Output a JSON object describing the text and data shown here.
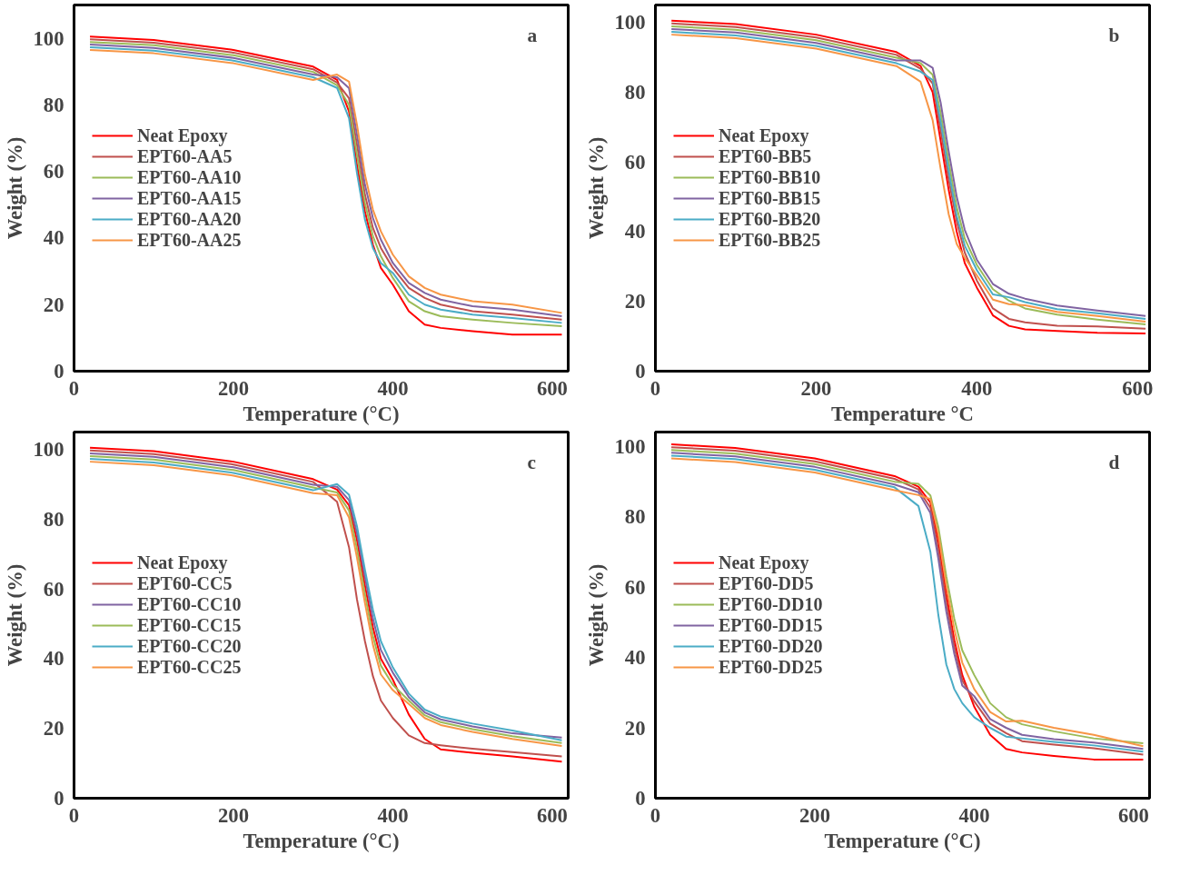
{
  "chart_data": [
    {
      "type": "line",
      "xlabel": "Temperature (°C)",
      "ylabel": "Weight (%)",
      "annotations": [
        "a"
      ],
      "legend": "left",
      "grid": false,
      "xlim": [
        0,
        620
      ],
      "ylim": [
        0,
        110
      ],
      "xticks": [
        0,
        200,
        400,
        600
      ],
      "yticks": [
        0,
        20,
        40,
        60,
        80,
        100
      ],
      "x": [
        20,
        100,
        200,
        300,
        330,
        345,
        355,
        365,
        375,
        385,
        400,
        420,
        440,
        460,
        500,
        550,
        612
      ],
      "series": [
        {
          "name": "Neat Epoxy",
          "color": "#ff0000",
          "values": [
            100.5,
            99.5,
            96.5,
            91.5,
            87.5,
            78,
            62,
            48,
            38,
            31,
            26,
            18,
            14,
            13,
            12,
            11,
            11
          ]
        },
        {
          "name": "EPT60-AA5",
          "color": "#c0504d",
          "values": [
            99.7,
            98.7,
            95.7,
            90.7,
            86.7,
            82,
            68,
            53,
            43,
            37,
            31,
            25,
            22,
            20,
            18,
            17,
            15.5
          ]
        },
        {
          "name": "EPT60-AA10",
          "color": "#9bbb59",
          "values": [
            98.9,
            97.9,
            94.9,
            89.9,
            85.9,
            80,
            65,
            50.5,
            40.5,
            34.5,
            28,
            21,
            18,
            16.5,
            15.5,
            14.5,
            13.5
          ]
        },
        {
          "name": "EPT60-AA15",
          "color": "#8064a2",
          "values": [
            98.1,
            97.1,
            94.1,
            89.1,
            88.3,
            85,
            71,
            56,
            46,
            39.5,
            32.5,
            26.5,
            23.5,
            21.5,
            19.5,
            18.5,
            16.5
          ]
        },
        {
          "name": "EPT60-AA20",
          "color": "#4bacc6",
          "values": [
            97.3,
            96.3,
            93.3,
            88.3,
            85.1,
            76,
            59.5,
            45.5,
            37,
            32.5,
            29.5,
            23,
            20,
            18.5,
            17,
            16,
            14.5
          ]
        },
        {
          "name": "EPT60-AA25",
          "color": "#f79646",
          "values": [
            96.5,
            95.5,
            92.5,
            87.5,
            89.1,
            87,
            74,
            59,
            48.5,
            42,
            35,
            28.5,
            25,
            23,
            21,
            20,
            17.5
          ]
        }
      ]
    },
    {
      "type": "line",
      "xlabel": "Temperature °C",
      "ylabel": "Weight (%)",
      "annotations": [
        "b"
      ],
      "legend": "left",
      "grid": false,
      "xlim": [
        0,
        615
      ],
      "ylim": [
        0,
        105
      ],
      "xticks": [
        0,
        200,
        400,
        600
      ],
      "yticks": [
        0,
        20,
        40,
        60,
        80,
        100
      ],
      "x": [
        20,
        100,
        200,
        300,
        330,
        345,
        355,
        365,
        375,
        385,
        400,
        420,
        440,
        460,
        500,
        550,
        610
      ],
      "series": [
        {
          "name": "Neat Epoxy",
          "color": "#ff0000",
          "values": [
            100.5,
            99.5,
            96.5,
            91.5,
            87.5,
            80,
            66,
            52,
            40,
            31,
            24,
            16,
            13,
            12,
            11.5,
            11,
            10.8
          ]
        },
        {
          "name": "EPT60-BB5",
          "color": "#c0504d",
          "values": [
            99.7,
            98.7,
            95.7,
            90.7,
            86.7,
            82.5,
            69,
            55,
            43,
            34,
            26,
            18,
            15,
            14,
            13,
            12.8,
            12.2
          ]
        },
        {
          "name": "EPT60-BB10",
          "color": "#9bbb59",
          "values": [
            98.9,
            97.9,
            94.9,
            89.9,
            88.3,
            85,
            74,
            60,
            47,
            38,
            30.5,
            23.5,
            20.2,
            18,
            16.2,
            14.8,
            13.4
          ]
        },
        {
          "name": "EPT60-BB15",
          "color": "#8064a2",
          "values": [
            98.1,
            97.1,
            94.1,
            89.1,
            89.1,
            87,
            77,
            63,
            50,
            40.5,
            32,
            25,
            22.2,
            20.8,
            18.8,
            17.4,
            15.8
          ]
        },
        {
          "name": "EPT60-BB20",
          "color": "#4bacc6",
          "values": [
            97.3,
            96.3,
            93.3,
            88.3,
            85.9,
            83.5,
            71.5,
            57.5,
            44.5,
            36,
            29,
            22,
            21.2,
            19.8,
            17.8,
            16.6,
            15
          ]
        },
        {
          "name": "EPT60-BB25",
          "color": "#f79646",
          "values": [
            96.5,
            95.5,
            92.5,
            87.5,
            83,
            72,
            58,
            45,
            36.5,
            32.5,
            27.5,
            20.5,
            19.2,
            18.9,
            17,
            15.8,
            14.2
          ]
        }
      ]
    },
    {
      "type": "line",
      "xlabel": "Temperature (°C)",
      "ylabel": "Weight (%)",
      "annotations": [
        "c"
      ],
      "legend": "left",
      "grid": false,
      "xlim": [
        0,
        620
      ],
      "ylim": [
        0,
        105
      ],
      "xticks": [
        0,
        200,
        400,
        600
      ],
      "yticks": [
        0,
        20,
        40,
        60,
        80,
        100
      ],
      "x": [
        20,
        100,
        200,
        300,
        330,
        345,
        355,
        365,
        375,
        385,
        400,
        420,
        440,
        460,
        500,
        550,
        612
      ],
      "series": [
        {
          "name": "Neat Epoxy",
          "color": "#ff0000",
          "values": [
            100.5,
            99.5,
            96.5,
            91.5,
            88.5,
            84,
            74,
            61,
            49,
            40,
            34,
            24,
            17,
            14,
            13,
            12,
            10.5
          ]
        },
        {
          "name": "EPT60-CC5",
          "color": "#c0504d",
          "values": [
            99.7,
            98.7,
            95.7,
            90.7,
            85,
            72,
            57,
            45,
            35,
            28,
            23,
            18,
            15.8,
            15.2,
            14.2,
            13.2,
            12
          ]
        },
        {
          "name": "EPT60-CC10",
          "color": "#8064a2",
          "values": [
            98.9,
            97.9,
            94.9,
            89.9,
            89.3,
            85.5,
            76,
            63.5,
            51.5,
            42.5,
            36,
            29,
            24.6,
            22.6,
            20.6,
            18.6,
            17.4
          ]
        },
        {
          "name": "EPT60-CC15",
          "color": "#9bbb59",
          "values": [
            98.1,
            97.1,
            94.1,
            89.1,
            87.7,
            82.5,
            71.5,
            58.5,
            46.5,
            38,
            32.5,
            28,
            23.8,
            21.8,
            19.8,
            17.8,
            15.8
          ]
        },
        {
          "name": "EPT60-CC20",
          "color": "#4bacc6",
          "values": [
            97.3,
            96.3,
            93.3,
            88.3,
            90.1,
            87,
            78,
            65.5,
            54,
            45,
            37.5,
            30,
            25.4,
            23.4,
            21.4,
            19.4,
            16.6
          ]
        },
        {
          "name": "EPT60-CC25",
          "color": "#f79646",
          "values": [
            96.5,
            95.5,
            92.5,
            87.5,
            86.9,
            80.5,
            69,
            56,
            44,
            35.5,
            31,
            27,
            23,
            21,
            19,
            17,
            15
          ]
        }
      ]
    },
    {
      "type": "line",
      "xlabel": "Temperature (°C)",
      "ylabel": "Weight (%)",
      "annotations": [
        "d"
      ],
      "legend": "left",
      "grid": false,
      "xlim": [
        0,
        620
      ],
      "ylim": [
        0,
        104
      ],
      "xticks": [
        0,
        200,
        400,
        600
      ],
      "yticks": [
        0,
        20,
        40,
        60,
        80,
        100
      ],
      "x": [
        20,
        100,
        200,
        300,
        330,
        345,
        355,
        365,
        375,
        385,
        400,
        420,
        440,
        460,
        500,
        550,
        612
      ],
      "series": [
        {
          "name": "Neat Epoxy",
          "color": "#ff0000",
          "values": [
            100.5,
            99.5,
            96.5,
            91.5,
            88.5,
            84,
            73,
            58,
            45,
            35,
            26,
            18,
            14,
            13,
            12,
            11,
            11
          ]
        },
        {
          "name": "EPT60-DD5",
          "color": "#c0504d",
          "values": [
            99.7,
            98.7,
            95.7,
            90.7,
            87.7,
            82.5,
            70.5,
            55.5,
            43,
            33.5,
            27.5,
            21.2,
            18.5,
            16.2,
            15.2,
            14.2,
            12.4
          ]
        },
        {
          "name": "EPT60-DD10",
          "color": "#9bbb59",
          "values": [
            98.9,
            97.9,
            94.9,
            89.9,
            89.3,
            86,
            77,
            63,
            51,
            42,
            35,
            27,
            23,
            21,
            19,
            17,
            15.6
          ]
        },
        {
          "name": "EPT60-DD15",
          "color": "#8064a2",
          "values": [
            98.1,
            97.1,
            94.1,
            89.1,
            86.9,
            81,
            68,
            53,
            41,
            32,
            29,
            22.5,
            20,
            18,
            16.8,
            15.8,
            14
          ]
        },
        {
          "name": "EPT60-DD20",
          "color": "#4bacc6",
          "values": [
            97.3,
            96.3,
            93.3,
            88.3,
            83,
            70,
            52,
            38,
            31,
            27,
            23,
            20,
            17.5,
            17,
            16,
            15,
            13.2
          ]
        },
        {
          "name": "EPT60-DD25",
          "color": "#f79646",
          "values": [
            96.5,
            95.5,
            92.5,
            87.5,
            86.1,
            85,
            75,
            60.5,
            48,
            38.5,
            31,
            24.5,
            21.8,
            22,
            20,
            18,
            14.8
          ]
        }
      ]
    }
  ]
}
